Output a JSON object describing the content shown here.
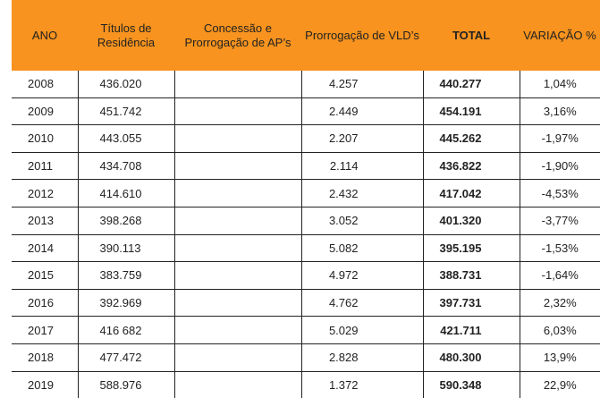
{
  "headers": {
    "ano": "ANO",
    "titulos": "Títulos de Residência",
    "concessao": "Concessão e Prorrogação de AP’s",
    "prorrogacao": "Prorrogação de VLD’s",
    "total": "TOTAL",
    "variacao": "VARIAÇÃO %"
  },
  "rows": [
    {
      "ano": "2008",
      "titulos": "436.020",
      "concessao": "",
      "prorrogacao": "4.257",
      "total": "440.277",
      "variacao": "1,04%"
    },
    {
      "ano": "2009",
      "titulos": "451.742",
      "concessao": "",
      "prorrogacao": "2.449",
      "total": "454.191",
      "variacao": "3,16%"
    },
    {
      "ano": "2010",
      "titulos": "443.055",
      "concessao": "",
      "prorrogacao": "2.207",
      "total": "445.262",
      "variacao": "-1,97%"
    },
    {
      "ano": "2011",
      "titulos": "434.708",
      "concessao": "",
      "prorrogacao": "2.114",
      "total": "436.822",
      "variacao": "-1,90%"
    },
    {
      "ano": "2012",
      "titulos": "414.610",
      "concessao": "",
      "prorrogacao": "2.432",
      "total": "417.042",
      "variacao": "-4,53%"
    },
    {
      "ano": "2013",
      "titulos": "398.268",
      "concessao": "",
      "prorrogacao": "3.052",
      "total": "401.320",
      "variacao": "-3,77%"
    },
    {
      "ano": "2014",
      "titulos": "390.113",
      "concessao": "",
      "prorrogacao": "5.082",
      "total": "395.195",
      "variacao": "-1,53%"
    },
    {
      "ano": "2015",
      "titulos": "383.759",
      "concessao": "",
      "prorrogacao": "4.972",
      "total": "388.731",
      "variacao": "-1,64%"
    },
    {
      "ano": "2016",
      "titulos": "392.969",
      "concessao": "",
      "prorrogacao": "4.762",
      "total": "397.731",
      "variacao": "2,32%"
    },
    {
      "ano": "2017",
      "titulos": "416 682",
      "concessao": "",
      "prorrogacao": "5.029",
      "total": "421.711",
      "variacao": "6,03%"
    },
    {
      "ano": "2018",
      "titulos": "477.472",
      "concessao": "",
      "prorrogacao": "2.828",
      "total": "480.300",
      "variacao": "13,9%"
    },
    {
      "ano": "2019",
      "titulos": "588.976",
      "concessao": "",
      "prorrogacao": "1.372",
      "total": "590.348",
      "variacao": "22,9%"
    }
  ],
  "colors": {
    "header_bg": "#f7931e",
    "rule": "#222222"
  }
}
